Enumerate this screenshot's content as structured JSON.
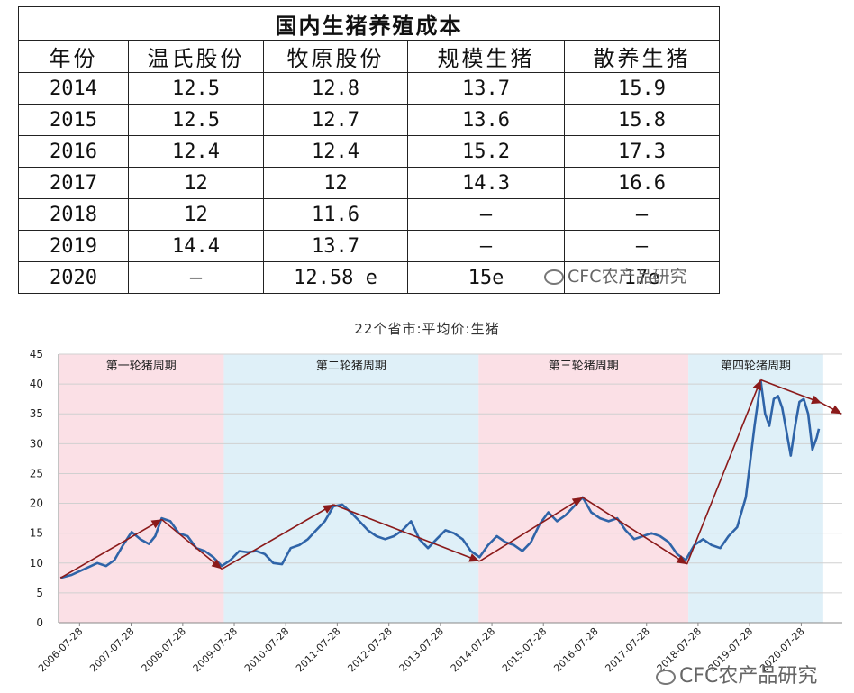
{
  "table": {
    "title": "国内生猪养殖成本",
    "headers": [
      "年份",
      "温氏股份",
      "牧原股份",
      "规模生猪",
      "散养生猪"
    ],
    "rows": [
      [
        "2014",
        "12.5",
        "12.8",
        "13.7",
        "15.9"
      ],
      [
        "2015",
        "12.5",
        "12.7",
        "13.6",
        "15.8"
      ],
      [
        "2016",
        "12.4",
        "12.4",
        "15.2",
        "17.3"
      ],
      [
        "2017",
        "12",
        "12",
        "14.3",
        "16.6"
      ],
      [
        "2018",
        "12",
        "11.6",
        "–",
        "–"
      ],
      [
        "2019",
        "14.4",
        "13.7",
        "–",
        "–"
      ],
      [
        "2020",
        "–",
        "12.58 e",
        "15e",
        "17e"
      ]
    ]
  },
  "watermark_top": "CFC农产品研究",
  "watermark_bottom": "CFC农产品研究",
  "chart_data": {
    "type": "line",
    "title": "22个省市:平均价:生猪",
    "ylim": [
      0,
      45
    ],
    "y_ticks": [
      0,
      5,
      10,
      15,
      20,
      25,
      30,
      35,
      40,
      45
    ],
    "x_ticks": [
      "2006-07-28",
      "2007-07-28",
      "2008-07-28",
      "2009-07-28",
      "2010-07-28",
      "2011-07-28",
      "2012-07-28",
      "2013-07-28",
      "2014-07-28",
      "2015-07-28",
      "2016-07-28",
      "2017-07-28",
      "2018-07-28",
      "2019-07-28",
      "2020-07-28"
    ],
    "grid": "horizontal",
    "line_color": "#2f64a8",
    "trend_color": "#8b1a1a",
    "cycles": [
      {
        "label": "第一轮猪周期",
        "from": "2006-03-01",
        "to": "2009-05-15",
        "color": "#fbe0e6"
      },
      {
        "label": "第二轮猪周期",
        "from": "2009-05-15",
        "to": "2014-04-25",
        "color": "#dff0f8"
      },
      {
        "label": "第三轮猪周期",
        "from": "2014-04-25",
        "to": "2018-05-20",
        "color": "#fbe0e6"
      },
      {
        "label": "第四轮猪周期",
        "from": "2018-05-20",
        "to": "2020-12-31",
        "color": "#dff0f8"
      }
    ],
    "series": [
      {
        "values": [
          [
            "2006-03-15",
            7.5
          ],
          [
            "2006-06-01",
            8.0
          ],
          [
            "2006-09-01",
            9.0
          ],
          [
            "2006-12-01",
            10.0
          ],
          [
            "2007-02-01",
            9.5
          ],
          [
            "2007-04-01",
            10.5
          ],
          [
            "2007-06-01",
            13.0
          ],
          [
            "2007-08-01",
            15.2
          ],
          [
            "2007-10-01",
            14.0
          ],
          [
            "2007-12-01",
            13.2
          ],
          [
            "2008-01-15",
            14.5
          ],
          [
            "2008-03-01",
            17.5
          ],
          [
            "2008-05-01",
            17.0
          ],
          [
            "2008-07-01",
            15.0
          ],
          [
            "2008-09-01",
            14.5
          ],
          [
            "2008-11-01",
            12.5
          ],
          [
            "2009-01-01",
            12.0
          ],
          [
            "2009-03-01",
            11.0
          ],
          [
            "2009-05-01",
            9.5
          ],
          [
            "2009-07-01",
            10.5
          ],
          [
            "2009-09-01",
            12.0
          ],
          [
            "2009-11-01",
            11.8
          ],
          [
            "2010-01-01",
            12.0
          ],
          [
            "2010-03-01",
            11.5
          ],
          [
            "2010-05-01",
            10.0
          ],
          [
            "2010-07-01",
            9.8
          ],
          [
            "2010-09-01",
            12.5
          ],
          [
            "2010-11-01",
            13.0
          ],
          [
            "2011-01-01",
            14.0
          ],
          [
            "2011-03-01",
            15.5
          ],
          [
            "2011-05-01",
            17.0
          ],
          [
            "2011-07-01",
            19.5
          ],
          [
            "2011-09-01",
            19.8
          ],
          [
            "2011-11-01",
            18.5
          ],
          [
            "2012-01-01",
            17.0
          ],
          [
            "2012-03-01",
            15.5
          ],
          [
            "2012-05-01",
            14.5
          ],
          [
            "2012-07-01",
            14.0
          ],
          [
            "2012-09-01",
            14.5
          ],
          [
            "2012-11-01",
            15.5
          ],
          [
            "2013-01-01",
            17.0
          ],
          [
            "2013-03-01",
            14.0
          ],
          [
            "2013-05-01",
            12.5
          ],
          [
            "2013-07-01",
            14.0
          ],
          [
            "2013-09-01",
            15.5
          ],
          [
            "2013-11-01",
            15.0
          ],
          [
            "2014-01-01",
            14.0
          ],
          [
            "2014-03-01",
            12.0
          ],
          [
            "2014-05-01",
            11.0
          ],
          [
            "2014-07-01",
            13.0
          ],
          [
            "2014-09-01",
            14.5
          ],
          [
            "2014-11-01",
            13.5
          ],
          [
            "2015-01-01",
            13.0
          ],
          [
            "2015-03-01",
            12.0
          ],
          [
            "2015-05-01",
            13.5
          ],
          [
            "2015-07-01",
            16.5
          ],
          [
            "2015-09-01",
            18.5
          ],
          [
            "2015-11-01",
            17.0
          ],
          [
            "2016-01-01",
            18.0
          ],
          [
            "2016-03-01",
            19.5
          ],
          [
            "2016-05-01",
            21.0
          ],
          [
            "2016-07-01",
            18.5
          ],
          [
            "2016-09-01",
            17.5
          ],
          [
            "2016-11-01",
            17.0
          ],
          [
            "2017-01-01",
            17.5
          ],
          [
            "2017-03-01",
            15.5
          ],
          [
            "2017-05-01",
            14.0
          ],
          [
            "2017-07-01",
            14.5
          ],
          [
            "2017-09-01",
            15.0
          ],
          [
            "2017-11-01",
            14.5
          ],
          [
            "2018-01-01",
            13.5
          ],
          [
            "2018-03-01",
            11.5
          ],
          [
            "2018-05-01",
            10.5
          ],
          [
            "2018-07-01",
            13.0
          ],
          [
            "2018-09-01",
            14.0
          ],
          [
            "2018-11-01",
            13.0
          ],
          [
            "2019-01-01",
            12.5
          ],
          [
            "2019-03-01",
            14.5
          ],
          [
            "2019-05-01",
            16.0
          ],
          [
            "2019-07-01",
            21.0
          ],
          [
            "2019-09-01",
            33.0
          ],
          [
            "2019-10-15",
            40.5
          ],
          [
            "2019-11-15",
            35.0
          ],
          [
            "2019-12-15",
            33.0
          ],
          [
            "2020-01-15",
            37.5
          ],
          [
            "2020-02-15",
            38.0
          ],
          [
            "2020-03-15",
            36.0
          ],
          [
            "2020-04-15",
            32.0
          ],
          [
            "2020-05-15",
            28.0
          ],
          [
            "2020-06-15",
            33.0
          ],
          [
            "2020-07-15",
            37.0
          ],
          [
            "2020-08-15",
            37.5
          ],
          [
            "2020-09-15",
            35.0
          ],
          [
            "2020-10-15",
            29.0
          ],
          [
            "2020-11-15",
            31.0
          ],
          [
            "2020-11-30",
            32.5
          ]
        ]
      }
    ],
    "trend_points": [
      [
        "2006-03-15",
        7.5
      ],
      [
        "2008-03-01",
        17.3
      ],
      [
        "2009-05-01",
        9.0
      ],
      [
        "2011-07-01",
        19.8
      ],
      [
        "2014-05-01",
        10.3
      ],
      [
        "2016-05-01",
        21.0
      ],
      [
        "2018-05-10",
        9.8
      ],
      [
        "2019-10-15",
        40.7
      ],
      [
        "2020-12-20",
        36.8
      ],
      [
        "2021-05-10",
        35.0
      ]
    ]
  }
}
